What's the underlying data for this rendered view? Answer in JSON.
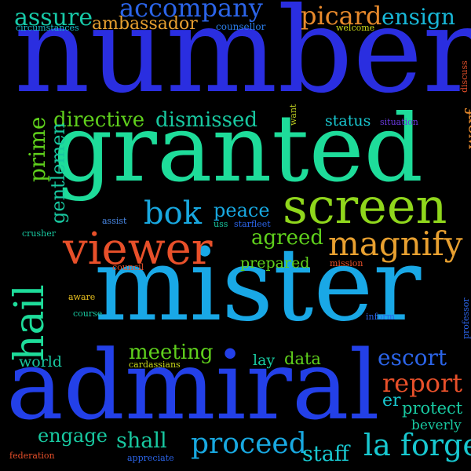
{
  "words": [
    {
      "text": "number",
      "color": "#2a2ee0",
      "rotate": false
    },
    {
      "text": "granted",
      "color": "#1edc9a",
      "rotate": false
    },
    {
      "text": "mister",
      "color": "#19a8e6",
      "rotate": false
    },
    {
      "text": "admiral",
      "color": "#2340e8",
      "rotate": false
    },
    {
      "text": "screen",
      "color": "#8fd61c",
      "rotate": false
    },
    {
      "text": "viewer",
      "color": "#e8502a",
      "rotate": false
    },
    {
      "text": "magnify",
      "color": "#e8a030",
      "rotate": false
    },
    {
      "text": "hail",
      "color": "#1edc9a",
      "rotate": true
    },
    {
      "text": "accompany",
      "color": "#2b64e8",
      "rotate": false
    },
    {
      "text": "assure",
      "color": "#17c9a8",
      "rotate": false
    },
    {
      "text": "picard",
      "color": "#e88a2c",
      "rotate": false
    },
    {
      "text": "ensign",
      "color": "#18b8d8",
      "rotate": false
    },
    {
      "text": "ambassador",
      "color": "#e8a030",
      "rotate": false
    },
    {
      "text": "circumstances",
      "color": "#17b8c8",
      "rotate": false
    },
    {
      "text": "counsellor",
      "color": "#2b7de8",
      "rotate": false
    },
    {
      "text": "welcome",
      "color": "#c9d81a",
      "rotate": false
    },
    {
      "text": "directive",
      "color": "#5fd01c",
      "rotate": false
    },
    {
      "text": "dismissed",
      "color": "#18c8a0",
      "rotate": false
    },
    {
      "text": "status",
      "color": "#18c8d0",
      "rotate": false
    },
    {
      "text": "situation",
      "color": "#6a3ae0",
      "rotate": false
    },
    {
      "text": "worf",
      "color": "#e88a2c",
      "rotate": true
    },
    {
      "text": "want",
      "color": "#b8c820",
      "rotate": true
    },
    {
      "text": "discuss",
      "color": "#e8502a",
      "rotate": true
    },
    {
      "text": "prime",
      "color": "#5fd01c",
      "rotate": true
    },
    {
      "text": "gentlemen",
      "color": "#18c8a0",
      "rotate": true
    },
    {
      "text": "bok",
      "color": "#18a8e0",
      "rotate": false
    },
    {
      "text": "peace",
      "color": "#18a8e0",
      "rotate": false
    },
    {
      "text": "assist",
      "color": "#4a8ae8",
      "rotate": false
    },
    {
      "text": "uss",
      "color": "#18c8a0",
      "rotate": false
    },
    {
      "text": "starfleet",
      "color": "#2b64e8",
      "rotate": false
    },
    {
      "text": "agreed",
      "color": "#5fd01c",
      "rotate": false
    },
    {
      "text": "crusher",
      "color": "#18c8a0",
      "rotate": false
    },
    {
      "text": "council",
      "color": "#e8502a",
      "rotate": false
    },
    {
      "text": "prepared",
      "color": "#5fd01c",
      "rotate": false
    },
    {
      "text": "mission",
      "color": "#e8502a",
      "rotate": false
    },
    {
      "text": "aware",
      "color": "#e8c020",
      "rotate": false
    },
    {
      "text": "course",
      "color": "#18c8a0",
      "rotate": false
    },
    {
      "text": "inform",
      "color": "#2b64e8",
      "rotate": false
    },
    {
      "text": "professor",
      "color": "#2b64e8",
      "rotate": true
    },
    {
      "text": "meeting",
      "color": "#5fd01c",
      "rotate": false
    },
    {
      "text": "cardassians",
      "color": "#c9d81a",
      "rotate": false
    },
    {
      "text": "world",
      "color": "#18c8a0",
      "rotate": false
    },
    {
      "text": "lay",
      "color": "#18c8a0",
      "rotate": false
    },
    {
      "text": "data",
      "color": "#5fd01c",
      "rotate": false
    },
    {
      "text": "escort",
      "color": "#2b64e8",
      "rotate": false
    },
    {
      "text": "report",
      "color": "#e8502a",
      "rotate": false
    },
    {
      "text": "er",
      "color": "#18c8d0",
      "rotate": false
    },
    {
      "text": "protect",
      "color": "#18c8a0",
      "rotate": false
    },
    {
      "text": "beverly",
      "color": "#18c8a0",
      "rotate": false
    },
    {
      "text": "engage",
      "color": "#18c8a0",
      "rotate": false
    },
    {
      "text": "shall",
      "color": "#18c8a0",
      "rotate": false
    },
    {
      "text": "proceed",
      "color": "#18a8e0",
      "rotate": false
    },
    {
      "text": "la forge",
      "color": "#18c8d0",
      "rotate": false
    },
    {
      "text": "staff",
      "color": "#18c8d0",
      "rotate": false
    },
    {
      "text": "federation",
      "color": "#e8502a",
      "rotate": false
    },
    {
      "text": "appreciate",
      "color": "#2b64e8",
      "rotate": false
    }
  ]
}
